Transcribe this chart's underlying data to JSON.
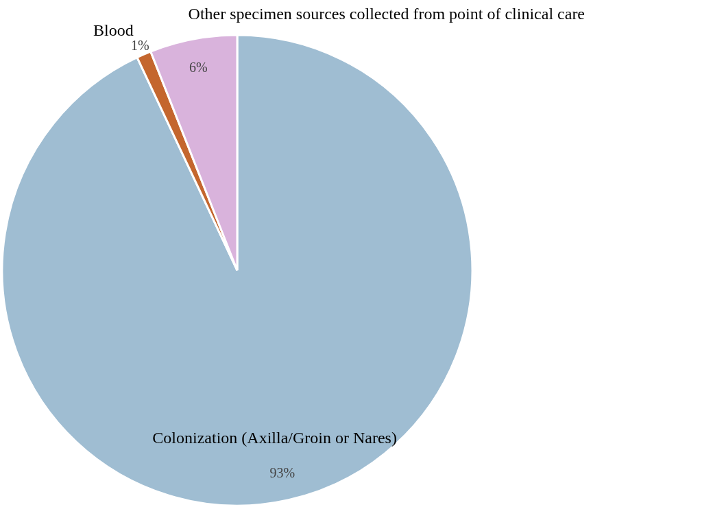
{
  "chart_data": {
    "type": "pie",
    "categories": [
      "Colonization (Axilla/Groin or Nares)",
      "Blood",
      "Other specimen sources collected from point of clinical care"
    ],
    "values": [
      93,
      1,
      6
    ],
    "colors": [
      "#9fbdd2",
      "#c4662e",
      "#d9b3dc"
    ],
    "value_labels": [
      "93%",
      "1%",
      "6%"
    ],
    "legend": false
  }
}
